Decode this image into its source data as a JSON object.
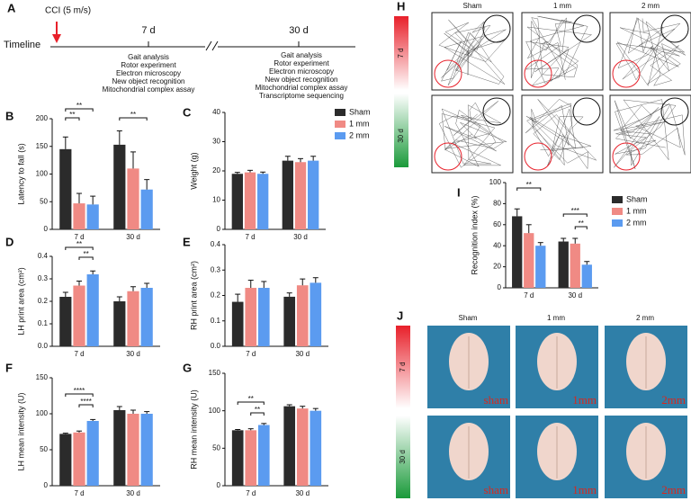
{
  "figure": {
    "timeline": {
      "panel": "A",
      "label": "Timeline",
      "injury": "CCI (5 m/s)",
      "time_points": [
        {
          "label": "7 d",
          "assays": [
            "Gait analysis",
            "Rotor experiment",
            "Electron microscopy",
            "New object recognition",
            "Mitochondrial complex assay"
          ]
        },
        {
          "label": "30 d",
          "assays": [
            "Gait analysis",
            "Rotor experiment",
            "Electron microscopy",
            "New object recognition",
            "Mitochondrial complex assay",
            "Transcriptome sequencing"
          ]
        }
      ]
    },
    "trajectories": {
      "panel": "H",
      "columns": [
        "Sham",
        "1 mm",
        "2 mm"
      ],
      "rows": [
        "7 d",
        "30 d"
      ]
    },
    "brains": {
      "panel": "J",
      "columns": [
        "Sham",
        "1 mm",
        "2 mm"
      ],
      "rows": [
        "7 d",
        "30 d"
      ],
      "photo_labels": [
        "sham",
        "1mm",
        "2mm"
      ]
    }
  },
  "chart_data": [
    {
      "type": "bar",
      "panel": "B",
      "ylabel": "Latency to fall (s)",
      "categories": [
        "7 d",
        "30 d"
      ],
      "series": [
        {
          "name": "Sham",
          "color": "#2b2b2b",
          "values": [
            145,
            153
          ],
          "errors": [
            22,
            25
          ]
        },
        {
          "name": "1 mm",
          "color": "#f08a84",
          "values": [
            47,
            110
          ],
          "errors": [
            18,
            30
          ]
        },
        {
          "name": "2 mm",
          "color": "#5b9bf0",
          "values": [
            45,
            72
          ],
          "errors": [
            15,
            18
          ]
        }
      ],
      "ylim": [
        0,
        200
      ],
      "yticks": [
        0,
        50,
        100,
        150,
        200
      ],
      "legend": false,
      "significance": [
        "**",
        "**",
        "**"
      ]
    },
    {
      "type": "bar",
      "panel": "C",
      "ylabel": "Weight (g)",
      "categories": [
        "7 d",
        "30 d"
      ],
      "series": [
        {
          "name": "Sham",
          "color": "#2b2b2b",
          "values": [
            19,
            23.5
          ],
          "errors": [
            0.5,
            1.5
          ]
        },
        {
          "name": "1 mm",
          "color": "#f08a84",
          "values": [
            19.5,
            23
          ],
          "errors": [
            0.7,
            1.2
          ]
        },
        {
          "name": "2 mm",
          "color": "#5b9bf0",
          "values": [
            19,
            23.5
          ],
          "errors": [
            0.6,
            1.5
          ]
        }
      ],
      "ylim": [
        0,
        40
      ],
      "yticks": [
        0,
        10,
        20,
        30,
        40
      ],
      "legend": true,
      "significance": []
    },
    {
      "type": "bar",
      "panel": "D",
      "ylabel": "LH print area (cm²)",
      "categories": [
        "7 d",
        "30 d"
      ],
      "series": [
        {
          "name": "Sham",
          "color": "#2b2b2b",
          "values": [
            0.22,
            0.2
          ],
          "errors": [
            0.02,
            0.02
          ]
        },
        {
          "name": "1 mm",
          "color": "#f08a84",
          "values": [
            0.27,
            0.245
          ],
          "errors": [
            0.02,
            0.02
          ]
        },
        {
          "name": "2 mm",
          "color": "#5b9bf0",
          "values": [
            0.32,
            0.26
          ],
          "errors": [
            0.015,
            0.02
          ]
        }
      ],
      "ylim": [
        0,
        0.4
      ],
      "yticks": [
        {
          "value": 0,
          "label": "0.0"
        },
        0.1,
        0.2,
        0.3,
        0.4
      ],
      "legend": false,
      "significance": [
        "**",
        "**"
      ]
    },
    {
      "type": "bar",
      "panel": "E",
      "ylabel": "RH print area (cm²)",
      "categories": [
        "7 d",
        "30 d"
      ],
      "series": [
        {
          "name": "Sham",
          "color": "#2b2b2b",
          "values": [
            0.175,
            0.195
          ],
          "errors": [
            0.03,
            0.015
          ]
        },
        {
          "name": "1 mm",
          "color": "#f08a84",
          "values": [
            0.23,
            0.24
          ],
          "errors": [
            0.03,
            0.025
          ]
        },
        {
          "name": "2 mm",
          "color": "#5b9bf0",
          "values": [
            0.23,
            0.25
          ],
          "errors": [
            0.025,
            0.02
          ]
        }
      ],
      "ylim": [
        0,
        0.4
      ],
      "yticks": [
        {
          "value": 0,
          "label": "0.0"
        },
        0.1,
        0.2,
        0.3,
        0.4
      ],
      "legend": false,
      "significance": []
    },
    {
      "type": "bar",
      "panel": "F",
      "ylabel": "LH mean intensity (U)",
      "categories": [
        "7 d",
        "30 d"
      ],
      "series": [
        {
          "name": "Sham",
          "color": "#2b2b2b",
          "values": [
            72,
            105
          ],
          "errors": [
            1,
            5
          ]
        },
        {
          "name": "1 mm",
          "color": "#f08a84",
          "values": [
            74,
            100
          ],
          "errors": [
            2,
            5
          ]
        },
        {
          "name": "2 mm",
          "color": "#5b9bf0",
          "values": [
            90,
            100
          ],
          "errors": [
            2,
            3
          ]
        }
      ],
      "ylim": [
        0,
        150
      ],
      "yticks": [
        0,
        50,
        100,
        150
      ],
      "legend": false,
      "significance": [
        "****",
        "****"
      ]
    },
    {
      "type": "bar",
      "panel": "G",
      "ylabel": "RH mean intensity (U)",
      "categories": [
        "7 d",
        "30 d"
      ],
      "series": [
        {
          "name": "Sham",
          "color": "#2b2b2b",
          "values": [
            74,
            106
          ],
          "errors": [
            1,
            2
          ]
        },
        {
          "name": "1 mm",
          "color": "#f08a84",
          "values": [
            74,
            103
          ],
          "errors": [
            2,
            3
          ]
        },
        {
          "name": "2 mm",
          "color": "#5b9bf0",
          "values": [
            81,
            100
          ],
          "errors": [
            2,
            3
          ]
        }
      ],
      "ylim": [
        0,
        150
      ],
      "yticks": [
        0,
        50,
        100,
        150
      ],
      "legend": false,
      "significance": [
        "**",
        "**"
      ]
    },
    {
      "type": "bar",
      "panel": "I",
      "ylabel": "Recognition index (%)",
      "categories": [
        "7 d",
        "30 d"
      ],
      "series": [
        {
          "name": "Sham",
          "color": "#2b2b2b",
          "values": [
            68,
            44
          ],
          "errors": [
            7,
            3
          ]
        },
        {
          "name": "1 mm",
          "color": "#f08a84",
          "values": [
            52,
            42
          ],
          "errors": [
            8,
            5
          ]
        },
        {
          "name": "2 mm",
          "color": "#5b9bf0",
          "values": [
            40,
            22
          ],
          "errors": [
            3,
            3
          ]
        }
      ],
      "ylim": [
        0,
        100
      ],
      "yticks": [
        0,
        20,
        40,
        60,
        80,
        100
      ],
      "legend": true,
      "significance": [
        "**",
        "***",
        "**"
      ]
    }
  ]
}
